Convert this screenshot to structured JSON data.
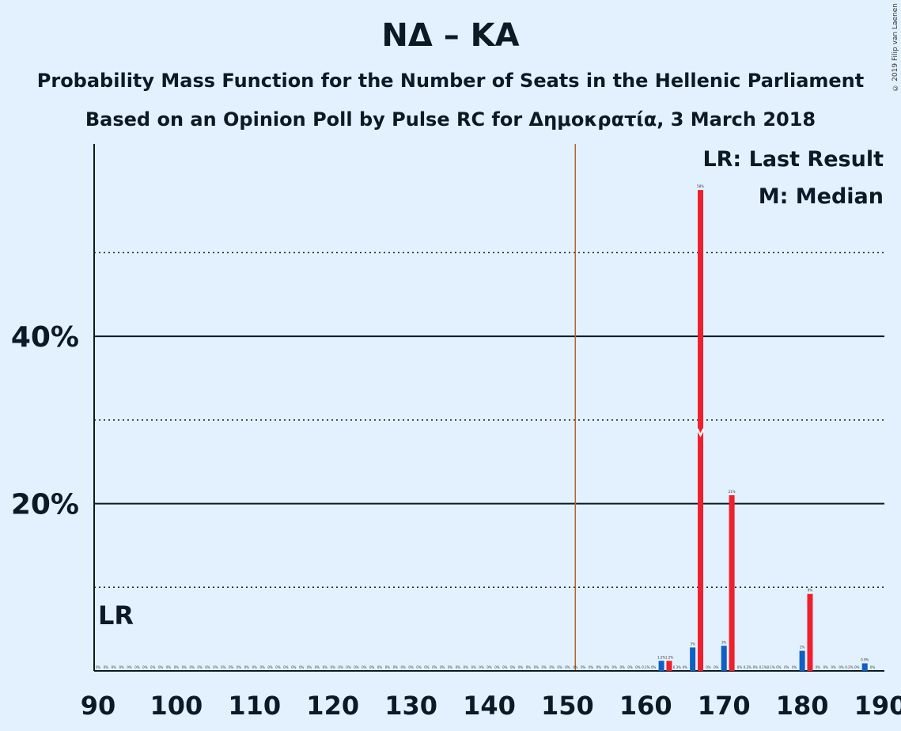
{
  "chart_data": {
    "type": "bar",
    "title": "ΝΔ – ΚΑ",
    "subtitle1": "Probability Mass Function for the Number of Seats in the Hellenic Parliament",
    "subtitle2": "Based on an Opinion Poll by Pulse RC for Δημοκρατία, 3 March 2018",
    "copyright": "© 2019 Filip van Laenen",
    "xlabel": "",
    "ylabel": "",
    "xlim": [
      90,
      190
    ],
    "ylim": [
      0,
      63
    ],
    "x_ticks": [
      "90",
      "100",
      "110",
      "120",
      "130",
      "140",
      "150",
      "160",
      "170",
      "180",
      "190"
    ],
    "y_ticks": [
      {
        "value": 20,
        "label": "20%"
      },
      {
        "value": 40,
        "label": "40%"
      }
    ],
    "gridlines_solid": [
      20,
      40
    ],
    "gridlines_dotted": [
      10,
      30,
      50
    ],
    "majority_line": 151,
    "last_result_seat": 90,
    "last_result_label": "LR",
    "median_seat": 167,
    "legend": [
      "LR: Last Result",
      "M: Median"
    ],
    "legend_position": "top-right",
    "colors": {
      "blue": "#0f5fc4",
      "red": "#ef1f2c",
      "majority": "#b5622b",
      "axis": "#0b1a24"
    },
    "series": [
      {
        "color": "blue",
        "x": [
          162,
          166,
          170,
          180,
          188
        ],
        "values": [
          1.2,
          2.8,
          3.0,
          2.4,
          0.9
        ],
        "labels": [
          "1.2%",
          "3%",
          "3%",
          "2%",
          "0.9%"
        ]
      },
      {
        "color": "red",
        "x": [
          163,
          167,
          171,
          181
        ],
        "values": [
          1.2,
          57.5,
          21.0,
          9.2
        ],
        "labels": [
          "1.2%",
          "58%",
          "21%",
          "9%"
        ]
      }
    ],
    "zero_labels": {
      "x": [
        90,
        91,
        92,
        93,
        94,
        95,
        96,
        97,
        98,
        99,
        100,
        101,
        102,
        103,
        104,
        105,
        106,
        107,
        108,
        109,
        110,
        111,
        112,
        113,
        114,
        115,
        116,
        117,
        118,
        119,
        120,
        121,
        122,
        123,
        124,
        125,
        126,
        127,
        128,
        129,
        130,
        131,
        132,
        133,
        134,
        135,
        136,
        137,
        138,
        139,
        140,
        141,
        142,
        143,
        144,
        145,
        146,
        147,
        148,
        149,
        150,
        151,
        152,
        153,
        154,
        155,
        156,
        157,
        158,
        159,
        160,
        161,
        164,
        165,
        168,
        169,
        172,
        173,
        174,
        175,
        176,
        177,
        178,
        179,
        182,
        183,
        184,
        185,
        186,
        187,
        189
      ],
      "labels": [
        "0%",
        "0%",
        "0%",
        "0%",
        "0%",
        "0%",
        "0%",
        "0%",
        "0%",
        "0%",
        "0%",
        "0%",
        "0%",
        "0%",
        "0%",
        "0%",
        "0%",
        "0%",
        "0%",
        "0%",
        "0%",
        "0%",
        "0%",
        "0%",
        "0%",
        "0%",
        "0%",
        "0%",
        "0%",
        "0%",
        "0%",
        "0%",
        "0%",
        "0%",
        "0%",
        "0%",
        "0%",
        "0%",
        "0%",
        "0%",
        "0%",
        "0%",
        "0%",
        "0%",
        "0%",
        "0%",
        "0%",
        "0%",
        "0%",
        "0%",
        "0%",
        "0%",
        "0%",
        "0%",
        "0%",
        "0%",
        "0%",
        "0%",
        "0%",
        "0%",
        "0%",
        "0%",
        "0%",
        "0%",
        "0%",
        "0%",
        "0%",
        "0%",
        "0%",
        "0%",
        "0.1%",
        "0%",
        "0.3%",
        "0%",
        "0%",
        "0%",
        "0%",
        "0.2%",
        "0%",
        "0.1%",
        "0.1%",
        "0%",
        "0%",
        "0%",
        "0%",
        "0%",
        "0%",
        "0%",
        "0.2%",
        "0%",
        "0%"
      ]
    }
  }
}
